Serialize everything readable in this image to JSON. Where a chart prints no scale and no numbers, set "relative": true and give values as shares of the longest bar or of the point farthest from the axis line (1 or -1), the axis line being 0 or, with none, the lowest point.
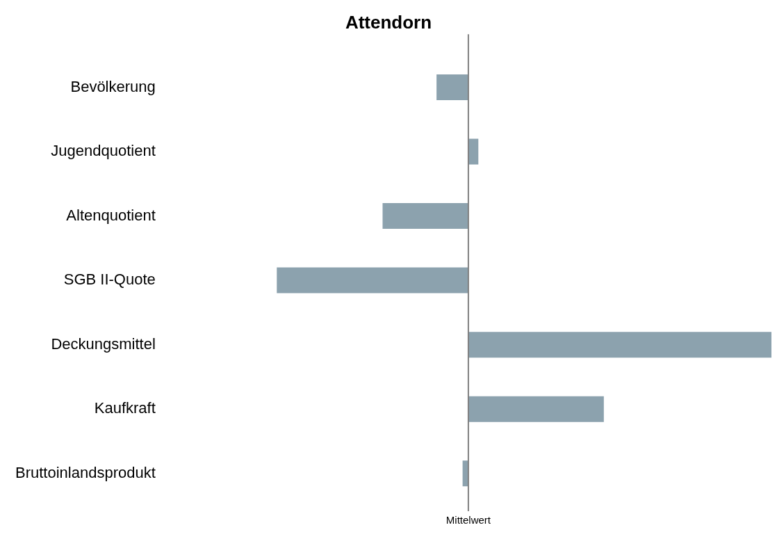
{
  "chart_data": {
    "type": "bar",
    "title": "Attendorn",
    "orientation": "horizontal",
    "relative": true,
    "categories": [
      "Bevölkerung",
      "Jugendquotient",
      "Altenquotient",
      "SGB II-Quote",
      "Deckungsmittel",
      "Kaufkraft",
      "Bruttoinlandsprodukt"
    ],
    "values": [
      -0.105,
      0.033,
      -0.283,
      -0.632,
      1,
      0.447,
      -0.019
    ],
    "color": "#8ca2ae",
    "grid": false,
    "legend": false,
    "ref_lines": [
      {
        "axis": "x",
        "value": 0,
        "label": "Mittelwert",
        "color": "#808080"
      }
    ]
  }
}
